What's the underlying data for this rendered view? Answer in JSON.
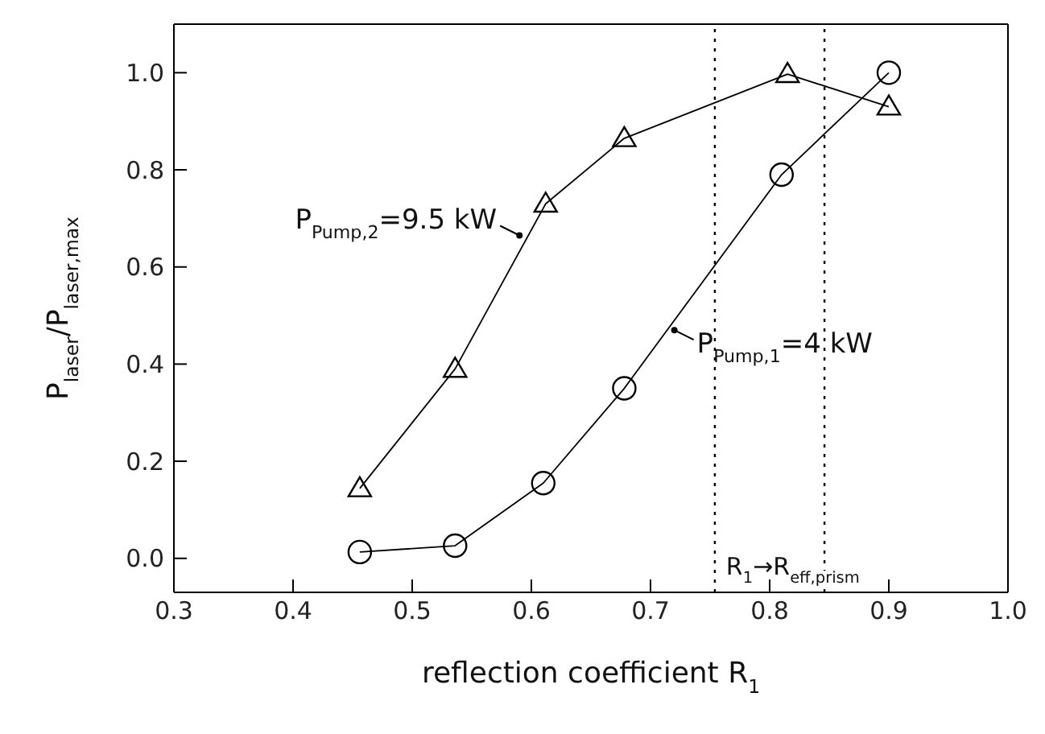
{
  "chart_data": {
    "type": "line",
    "xlabel": "reflection coefficient R$_{1}$",
    "ylabel": "P$_{laser}$/P$_{laser,max}$",
    "xlim": [
      0.3,
      1.0
    ],
    "xticks": [
      0.3,
      0.4,
      0.5,
      0.6,
      0.7,
      0.8,
      0.9,
      {
        "value": 1,
        "label": "1.0"
      }
    ],
    "ylim": [
      -0.07,
      1.1
    ],
    "yticks": [
      {
        "value": 0,
        "label": "0.0"
      },
      0.2,
      0.4,
      0.6,
      0.8,
      {
        "value": 1,
        "label": "1.0"
      }
    ],
    "line_style": "solid",
    "series": [
      {
        "color": "#000000",
        "marker": "triangle",
        "x": [
          0.456,
          0.536,
          0.612,
          0.678,
          0.815,
          0.9
        ],
        "values": [
          0.144,
          0.39,
          0.73,
          0.865,
          0.997,
          0.93
        ]
      },
      {
        "color": "#000000",
        "marker": "circle",
        "x": [
          0.456,
          0.536,
          0.61,
          0.678,
          0.81,
          0.9
        ],
        "values": [
          0.013,
          0.026,
          0.155,
          0.35,
          0.79,
          1.0
        ]
      }
    ],
    "ref_lines": [
      {
        "axis": "x",
        "value": 0.754,
        "color": "#000000",
        "line_style": "dotted"
      },
      {
        "axis": "x",
        "value": 0.846,
        "color": "#000000",
        "line_style": "dotted"
      }
    ],
    "annotations": [
      {
        "text": "P$_{Pump,2}$=9.5 kW",
        "x": 0.59,
        "y": 0.665
      },
      {
        "text": "P$_{Pump,1}$=4 kW",
        "x": 0.72,
        "y": 0.47
      },
      {
        "text": "R$_{1}$→R$_{eff,prism}$",
        "x": 0.758,
        "y": -0.04
      }
    ]
  }
}
